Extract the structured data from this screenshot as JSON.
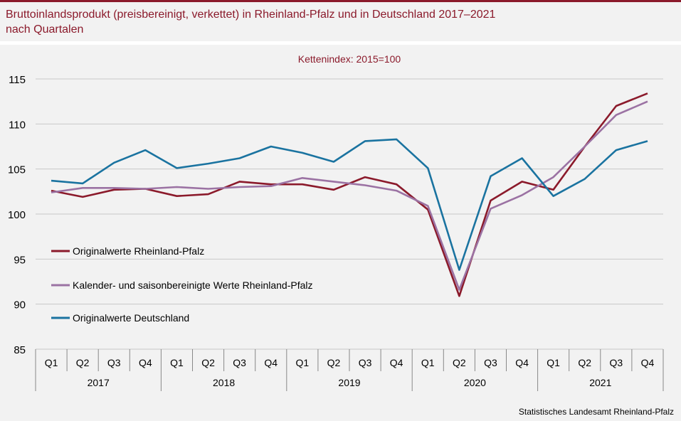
{
  "page": {
    "title_line1": "Bruttoinlandsprodukt (preisbereinigt, verkettet) in Rheinland-Pfalz und in Deutschland 2017–2021",
    "title_line2": "nach Quartalen",
    "source": "Statistisches Landesamt  Rheinland-Pfalz"
  },
  "colors": {
    "accent": "#8b1a2b",
    "rp_original": "#8b1a2b",
    "rp_adjusted": "#9b72a3",
    "de_original": "#1a73a0",
    "grid": "#c8c8c8"
  },
  "chart_data": {
    "type": "line",
    "title": "Kettenindex:  2015=100",
    "ylim": [
      85,
      115
    ],
    "yticks": [
      85,
      90,
      95,
      100,
      105,
      110,
      115
    ],
    "quarters": [
      "Q1",
      "Q2",
      "Q3",
      "Q4",
      "Q1",
      "Q2",
      "Q3",
      "Q4",
      "Q1",
      "Q2",
      "Q3",
      "Q4",
      "Q1",
      "Q2",
      "Q3",
      "Q4",
      "Q1",
      "Q2",
      "Q3",
      "Q4"
    ],
    "years": [
      "2017",
      "2018",
      "2019",
      "2020",
      "2021"
    ],
    "series": [
      {
        "name": "Originalwerte Rheinland-Pfalz",
        "color": "#8b1a2b",
        "values": [
          102.6,
          101.9,
          102.7,
          102.8,
          102.0,
          102.2,
          103.6,
          103.3,
          103.3,
          102.7,
          104.1,
          103.3,
          100.5,
          90.9,
          101.5,
          103.6,
          102.7,
          107.5,
          112.0,
          113.4
        ]
      },
      {
        "name": "Kalender- und saisonbereinigte Werte Rheinland-Pfalz",
        "color": "#9b72a3",
        "values": [
          102.4,
          102.9,
          102.9,
          102.8,
          103.0,
          102.8,
          103.0,
          103.1,
          104.0,
          103.6,
          103.2,
          102.6,
          100.9,
          91.6,
          100.6,
          102.1,
          104.1,
          107.5,
          111.0,
          112.5
        ]
      },
      {
        "name": "Originalwerte Deutschland",
        "color": "#1a73a0",
        "values": [
          103.7,
          103.4,
          105.7,
          107.1,
          105.1,
          105.6,
          106.2,
          107.5,
          106.8,
          105.8,
          108.1,
          108.3,
          105.1,
          93.8,
          104.2,
          106.2,
          102.0,
          103.9,
          107.1,
          108.1
        ]
      }
    ]
  }
}
